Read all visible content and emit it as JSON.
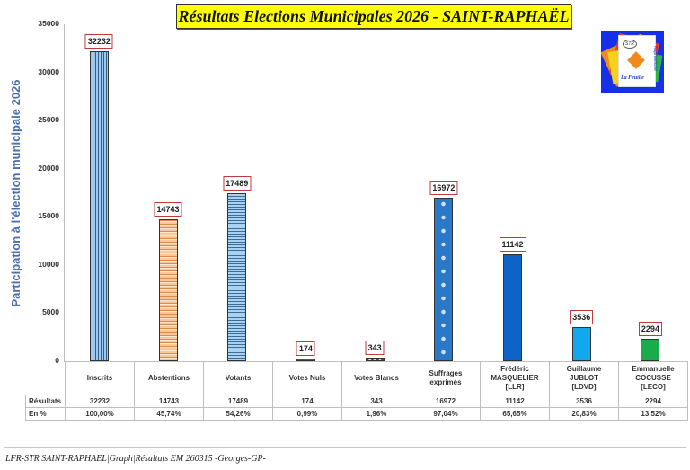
{
  "title": "Résultats Elections Municipales 2026 - SAINT-RAPHAËL",
  "logo": {
    "bubble": "STR",
    "text": "La Feuille",
    "side_text": "Raphaëloise"
  },
  "footer": "LFR-STR SAINT-RAPHAEL|Graph|Résultats EM 260315 -Georges-GP-",
  "table": {
    "row_labels": [
      "Résultats",
      "En %"
    ],
    "columns": [
      {
        "header": [
          "Inscrits"
        ],
        "result": "32232",
        "pct": "100,00%"
      },
      {
        "header": [
          "Abstentions"
        ],
        "result": "14743",
        "pct": "45,74%"
      },
      {
        "header": [
          "Votants"
        ],
        "result": "17489",
        "pct": "54,26%"
      },
      {
        "header": [
          "Votes Nuls"
        ],
        "result": "174",
        "pct": "0,99%"
      },
      {
        "header": [
          "Votes Blancs"
        ],
        "result": "343",
        "pct": "1,96%"
      },
      {
        "header": [
          "Suffrages",
          "exprimés"
        ],
        "result": "16972",
        "pct": "97,04%"
      },
      {
        "header": [
          "Frédéric",
          "MASQUELIER",
          "[LLR]"
        ],
        "result": "11142",
        "pct": "65,65%"
      },
      {
        "header": [
          "Guillaume",
          "JUBLOT",
          "[LDVD]"
        ],
        "result": "3536",
        "pct": "20,83%"
      },
      {
        "header": [
          "Emmanuelle",
          "COCUSSE",
          "[LECO]"
        ],
        "result": "2294",
        "pct": "13,52%"
      }
    ]
  },
  "chart_data": {
    "type": "bar",
    "title": "Résultats Elections Municipales 2026 - SAINT-RAPHAËL",
    "xlabel": "",
    "ylabel": "Participation à l'élection municipale 2026",
    "ylim": [
      0,
      35000
    ],
    "yticks": [
      0,
      5000,
      10000,
      15000,
      20000,
      25000,
      30000,
      35000
    ],
    "grid": false,
    "legend": "none (data table below chart)",
    "categories": [
      "Inscrits",
      "Abstentions",
      "Votants",
      "Votes Nuls",
      "Votes Blancs",
      "Suffrages exprimés",
      "Frédéric MASQUELIER [LLR]",
      "Guillaume JUBLOT [LDVD]",
      "Emmanuelle COCUSSE [LECO]"
    ],
    "values": [
      32232,
      14743,
      17489,
      174,
      343,
      16972,
      11142,
      3536,
      2294
    ],
    "data_labels": [
      "32232",
      "14743",
      "17489",
      "174",
      "343",
      "16972",
      "11142",
      "3536",
      "2294"
    ],
    "percentages": [
      "100,00%",
      "45,74%",
      "54,26%",
      "0,99%",
      "1,96%",
      "97,04%",
      "65,65%",
      "20,83%",
      "13,52%"
    ],
    "colors": {
      "Inscrits": "#9dc9ee",
      "Abstentions": "#f9c79a",
      "Votants": "#a8d2f0",
      "Votes Nuls": "#6b4b3a",
      "Votes Blancs": "#2a4d7a",
      "Suffrages exprimés": "#2a78c8",
      "Frédéric MASQUELIER [LLR]": "#0d63c8",
      "Guillaume JUBLOT [LDVD]": "#12a8f0",
      "Emmanuelle COCUSSE [LECO]": "#1aab4a"
    },
    "label_border_color": "#c0393b",
    "title_background": "#ffff00"
  }
}
